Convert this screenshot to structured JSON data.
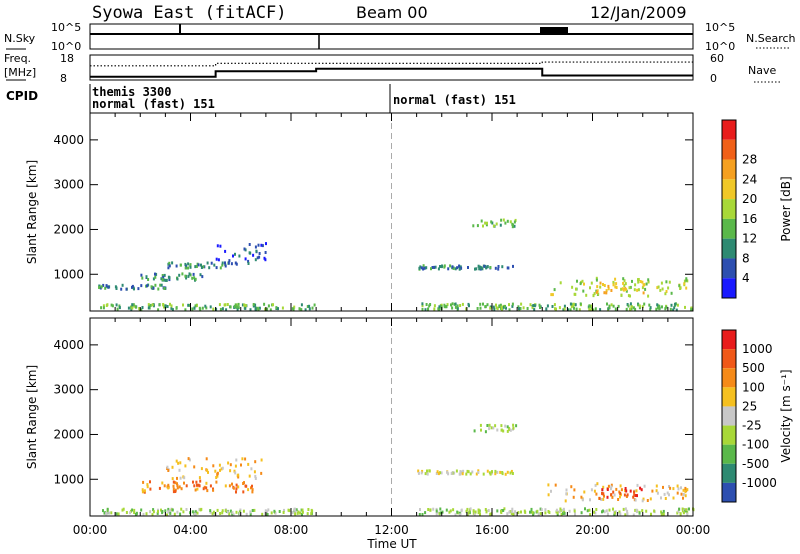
{
  "header": {
    "station": "Syowa East (fitACF)",
    "beam": "Beam 00",
    "date": "12/Jan/2009"
  },
  "top_panels": {
    "nsky_label": "N.Sky",
    "nsky_ticks": [
      "10^5",
      "10^0"
    ],
    "nsearch_label": "N.Search",
    "nsearch_ticks": [
      "10^5",
      "10^0"
    ],
    "freq_label": "Freq.",
    "freq_unit": "[MHz]",
    "freq_ticks": [
      "18",
      "8"
    ],
    "nave_label": "Nave",
    "nave_ticks": [
      "60",
      "0"
    ],
    "cpid_label": "CPID",
    "cpid_entries": [
      {
        "line1": "themis 3300",
        "line2": "normal (fast) 151"
      },
      {
        "line1": "normal (fast) 151",
        "line2": ""
      }
    ],
    "freq_series_mhz": [
      [
        0,
        9.3
      ],
      [
        5,
        9.3
      ],
      [
        5,
        11.5
      ],
      [
        9,
        11.5
      ],
      [
        9,
        12.5
      ],
      [
        18,
        12.5
      ],
      [
        18,
        9.8
      ],
      [
        24,
        9.8
      ]
    ],
    "nave_series": [
      [
        0,
        34
      ],
      [
        5,
        34
      ],
      [
        5,
        40
      ],
      [
        9,
        40
      ],
      [
        9,
        40
      ],
      [
        18,
        40
      ],
      [
        18,
        43
      ],
      [
        24,
        43
      ]
    ]
  },
  "chart_data": [
    {
      "type": "heatmap",
      "title": "Power",
      "xlabel": "Time UT",
      "ylabel": "Slant Range [km]",
      "x_ticks": [
        "00:00",
        "04:00",
        "08:00",
        "12:00",
        "16:00",
        "20:00",
        "00:00"
      ],
      "xlim_hours": [
        0,
        24
      ],
      "ylim_km": [
        180,
        4600
      ],
      "y_ticks": [
        1000,
        2000,
        3000,
        4000
      ],
      "colorbar": {
        "label": "Power [dB]",
        "ticks": [
          "4",
          "8",
          "12",
          "16",
          "20",
          "24",
          "28"
        ],
        "range": [
          0,
          30
        ],
        "colors": [
          "#1a1aff",
          "#2d4fb0",
          "#2e8a72",
          "#5ab84a",
          "#a8d838",
          "#f0c828",
          "#f5a020",
          "#f06018",
          "#e81c1c"
        ]
      },
      "features": [
        {
          "t0": 0.2,
          "t1": 9.0,
          "r0": 190,
          "r1": 320,
          "level": 3
        },
        {
          "t0": 0.3,
          "t1": 3.0,
          "r0": 650,
          "r1": 750,
          "level": 2
        },
        {
          "t0": 2.0,
          "t1": 4.5,
          "r0": 850,
          "r1": 1000,
          "level": 2
        },
        {
          "t0": 3.0,
          "t1": 5.5,
          "r0": 1100,
          "r1": 1250,
          "level": 2
        },
        {
          "t0": 5.0,
          "t1": 7.0,
          "r0": 1200,
          "r1": 1700,
          "level": 1
        },
        {
          "t0": 13.0,
          "t1": 16.8,
          "r0": 1100,
          "r1": 1180,
          "level": 2
        },
        {
          "t0": 15.2,
          "t1": 17.0,
          "r0": 2050,
          "r1": 2200,
          "level": 3
        },
        {
          "t0": 18.2,
          "t1": 23.8,
          "r0": 500,
          "r1": 900,
          "level": 4
        },
        {
          "t0": 20.0,
          "t1": 22.0,
          "r0": 550,
          "r1": 800,
          "level": 5
        },
        {
          "t0": 13.0,
          "t1": 24.0,
          "r0": 190,
          "r1": 330,
          "level": 3
        }
      ]
    },
    {
      "type": "heatmap",
      "title": "Velocity",
      "xlabel": "Time UT",
      "ylabel": "Slant Range [km]",
      "x_ticks": [
        "00:00",
        "04:00",
        "08:00",
        "12:00",
        "16:00",
        "20:00",
        "00:00"
      ],
      "xlim_hours": [
        0,
        24
      ],
      "ylim_km": [
        180,
        4600
      ],
      "y_ticks": [
        1000,
        2000,
        3000,
        4000
      ],
      "colorbar": {
        "label": "Velocity [m s⁻¹]",
        "ticks": [
          "1000",
          "500",
          "100",
          "25",
          "-25",
          "-100",
          "-500",
          "-1000"
        ],
        "range": [
          -1250,
          1250
        ],
        "colors": [
          "#2d4fb0",
          "#2e8a72",
          "#5ab84a",
          "#a8d838",
          "#c8c8c8",
          "#f5c020",
          "#f58a18",
          "#f05818",
          "#e81c1c"
        ]
      },
      "features": [
        {
          "t0": 0.2,
          "t1": 9.0,
          "r0": 190,
          "r1": 320,
          "level": 3
        },
        {
          "t0": 2.0,
          "t1": 6.5,
          "r0": 700,
          "r1": 950,
          "level": 6
        },
        {
          "t0": 3.0,
          "t1": 6.8,
          "r0": 1000,
          "r1": 1450,
          "level": 5
        },
        {
          "t0": 13.0,
          "t1": 16.8,
          "r0": 1100,
          "r1": 1180,
          "level": 4
        },
        {
          "t0": 15.2,
          "t1": 17.0,
          "r0": 2050,
          "r1": 2200,
          "level": 3
        },
        {
          "t0": 18.2,
          "t1": 23.8,
          "r0": 500,
          "r1": 900,
          "level": 5
        },
        {
          "t0": 20.0,
          "t1": 22.0,
          "r0": 550,
          "r1": 800,
          "level": 7
        },
        {
          "t0": 13.0,
          "t1": 24.0,
          "r0": 190,
          "r1": 330,
          "level": 3
        }
      ]
    }
  ]
}
